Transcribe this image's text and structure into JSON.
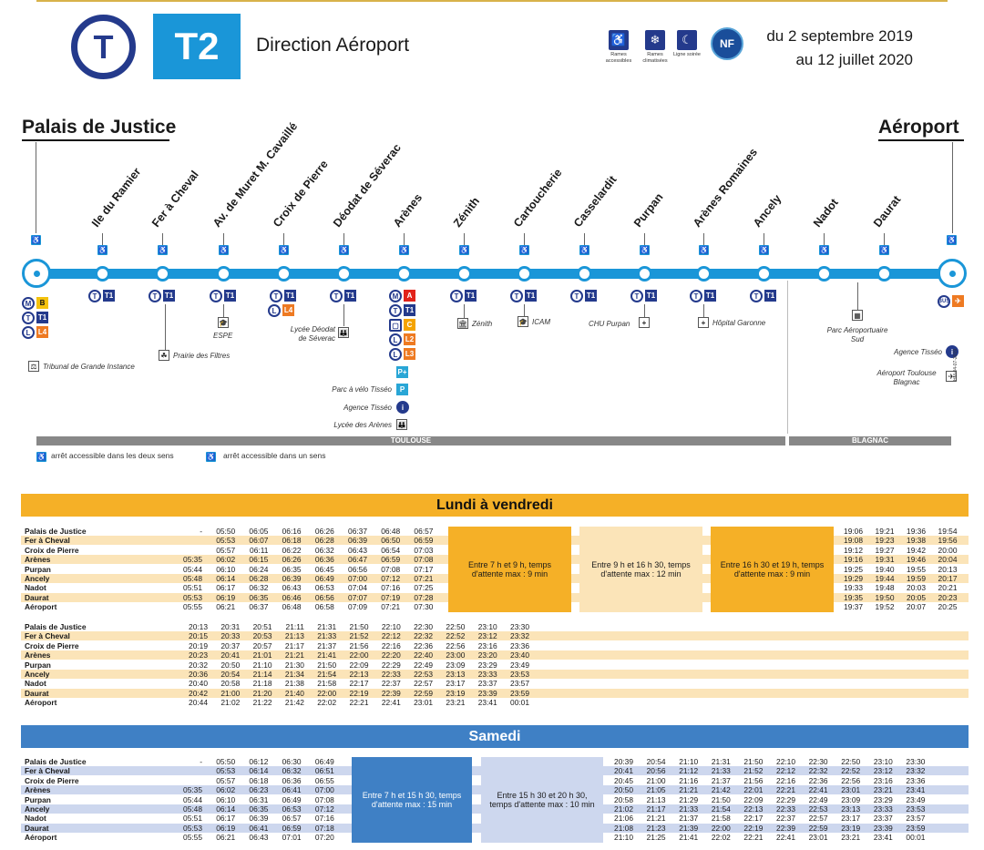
{
  "header": {
    "logo": "T",
    "line": "T2",
    "direction": "Direction Aéroport",
    "date_from": "du 2 septembre 2019",
    "date_to": "au 12 juillet 2020",
    "services": [
      {
        "icon": "wheelchair-icon",
        "label": "Rames accessibles"
      },
      {
        "icon": "snowflake-icon",
        "label": "Rames climatisées"
      },
      {
        "icon": "moon-icon",
        "label": "Ligne soirée"
      }
    ],
    "nf": "NF"
  },
  "map": {
    "origin": "Palais de Justice",
    "terminus": "Aéroport",
    "stops": [
      "Ile du Ramier",
      "Fer à Cheval",
      "Av. de Muret M. Cavaillé",
      "Croix de Pierre",
      "Déodat de Séverac",
      "Arènes",
      "Zénith",
      "Cartoucherie",
      "Casselardit",
      "Purpan",
      "Arènes Romaines",
      "Ancely",
      "Nadot",
      "Daurat"
    ],
    "conn": {
      "T": "T",
      "T1": "T1",
      "M": "M",
      "B": "B",
      "L": "L",
      "L4": "L4",
      "A": "A",
      "C": "C",
      "L2": "L2",
      "L3": "L3",
      "bus": "BUS"
    },
    "pois": {
      "tribunal": "Tribunal de Grande Instance",
      "filtres": "Prairie des Filtres",
      "espe": "ESPE",
      "lycee_deodat": "Lycée Déodat de Séverac",
      "velo": "Parc à vélo Tisséo",
      "agence1": "Agence Tisséo",
      "lycee_arenes": "Lycée des Arènes",
      "zenith": "Zénith",
      "icam": "ICAM",
      "chu": "CHU Purpan",
      "garonne": "Hôpital Garonne",
      "parc_aero": "Parc Aéroportuaire Sud",
      "agence2": "Agence Tisséo",
      "aeroport": "Aéroport Toulouse Blagnac"
    },
    "zones": [
      "TOULOUSE",
      "BLAGNAC"
    ],
    "legend1": "arrêt accessible dans les deux sens",
    "legend2": "arrêt accessible dans un sens",
    "ref": "HM-04-07-2019"
  },
  "timetable": {
    "stations": [
      "Palais de Justice",
      "Fer à Cheval",
      "Croix de Pierre",
      "Arènes",
      "Purpan",
      "Ancely",
      "Nadot",
      "Daurat",
      "Aéroport"
    ],
    "weekday": {
      "title": "Lundi à vendredi",
      "block1": [
        [
          "-",
          "",
          "",
          "05:35",
          "05:44",
          "05:48",
          "05:51",
          "05:53",
          "05:55"
        ],
        [
          "05:50",
          "05:53",
          "05:57",
          "06:02",
          "06:10",
          "06:14",
          "06:17",
          "06:19",
          "06:21"
        ],
        [
          "06:05",
          "06:07",
          "06:11",
          "06:15",
          "06:24",
          "06:28",
          "06:32",
          "06:35",
          "06:37"
        ],
        [
          "06:16",
          "06:18",
          "06:22",
          "06:26",
          "06:35",
          "06:39",
          "06:43",
          "06:46",
          "06:48"
        ],
        [
          "06:26",
          "06:28",
          "06:32",
          "06:36",
          "06:45",
          "06:49",
          "06:53",
          "06:56",
          "06:58"
        ],
        [
          "06:37",
          "06:39",
          "06:43",
          "06:47",
          "06:56",
          "07:00",
          "07:04",
          "07:07",
          "07:09"
        ],
        [
          "06:48",
          "06:50",
          "06:54",
          "06:59",
          "07:08",
          "07:12",
          "07:16",
          "07:19",
          "07:21"
        ],
        [
          "06:57",
          "06:59",
          "07:03",
          "07:08",
          "07:17",
          "07:21",
          "07:25",
          "07:28",
          "07:30"
        ]
      ],
      "boxes": [
        "Entre 7 h et 9 h, temps d'attente max : 9 min",
        "Entre 9 h et 16 h 30, temps d'attente max : 12 min",
        "Entre 16 h 30 et 19 h, temps d'attente max : 9 min"
      ],
      "block2": [
        [
          "19:06",
          "19:08",
          "19:12",
          "19:16",
          "19:25",
          "19:29",
          "19:33",
          "19:35",
          "19:37"
        ],
        [
          "19:21",
          "19:23",
          "19:27",
          "19:31",
          "19:40",
          "19:44",
          "19:48",
          "19:50",
          "19:52"
        ],
        [
          "19:36",
          "19:38",
          "19:42",
          "19:46",
          "19:55",
          "19:59",
          "20:03",
          "20:05",
          "20:07"
        ],
        [
          "19:54",
          "19:56",
          "20:00",
          "20:04",
          "20:13",
          "20:17",
          "20:21",
          "20:23",
          "20:25"
        ]
      ],
      "block3": [
        [
          "20:13",
          "20:15",
          "20:19",
          "20:23",
          "20:32",
          "20:36",
          "20:40",
          "20:42",
          "20:44"
        ],
        [
          "20:31",
          "20:33",
          "20:37",
          "20:41",
          "20:50",
          "20:54",
          "20:58",
          "21:00",
          "21:02"
        ],
        [
          "20:51",
          "20:53",
          "20:57",
          "21:01",
          "21:10",
          "21:14",
          "21:18",
          "21:20",
          "21:22"
        ],
        [
          "21:11",
          "21:13",
          "21:17",
          "21:21",
          "21:30",
          "21:34",
          "21:38",
          "21:40",
          "21:42"
        ],
        [
          "21:31",
          "21:33",
          "21:37",
          "21:41",
          "21:50",
          "21:54",
          "21:58",
          "22:00",
          "22:02"
        ],
        [
          "21:50",
          "21:52",
          "21:56",
          "22:00",
          "22:09",
          "22:13",
          "22:17",
          "22:19",
          "22:21"
        ],
        [
          "22:10",
          "22:12",
          "22:16",
          "22:20",
          "22:29",
          "22:33",
          "22:37",
          "22:39",
          "22:41"
        ],
        [
          "22:30",
          "22:32",
          "22:36",
          "22:40",
          "22:49",
          "22:53",
          "22:57",
          "22:59",
          "23:01"
        ],
        [
          "22:50",
          "22:52",
          "22:56",
          "23:00",
          "23:09",
          "23:13",
          "23:17",
          "23:19",
          "23:21"
        ],
        [
          "23:10",
          "23:12",
          "23:16",
          "23:20",
          "23:29",
          "23:33",
          "23:37",
          "23:39",
          "23:41"
        ],
        [
          "23:30",
          "23:32",
          "23:36",
          "23:40",
          "23:49",
          "23:53",
          "23:57",
          "23:59",
          "00:01"
        ]
      ]
    },
    "saturday": {
      "title": "Samedi",
      "block1": [
        [
          "-",
          "",
          "",
          "05:35",
          "05:44",
          "05:48",
          "05:51",
          "05:53",
          "05:55"
        ],
        [
          "05:50",
          "05:53",
          "05:57",
          "06:02",
          "06:10",
          "06:14",
          "06:17",
          "06:19",
          "06:21"
        ],
        [
          "06:12",
          "06:14",
          "06:18",
          "06:23",
          "06:31",
          "06:35",
          "06:39",
          "06:41",
          "06:43"
        ],
        [
          "06:30",
          "06:32",
          "06:36",
          "06:41",
          "06:49",
          "06:53",
          "06:57",
          "06:59",
          "07:01"
        ],
        [
          "06:49",
          "06:51",
          "06:55",
          "07:00",
          "07:08",
          "07:12",
          "07:16",
          "07:18",
          "07:20"
        ]
      ],
      "boxes": [
        "Entre 7 h et 15 h 30, temps d'attente max : 15 min",
        "Entre 15 h 30 et 20 h 30, temps d'attente max : 10 min"
      ],
      "block2": [
        [
          "20:39",
          "20:41",
          "20:45",
          "20:50",
          "20:58",
          "21:02",
          "21:06",
          "21:08",
          "21:10"
        ],
        [
          "20:54",
          "20:56",
          "21:00",
          "21:05",
          "21:13",
          "21:17",
          "21:21",
          "21:23",
          "21:25"
        ],
        [
          "21:10",
          "21:12",
          "21:16",
          "21:21",
          "21:29",
          "21:33",
          "21:37",
          "21:39",
          "21:41"
        ],
        [
          "21:31",
          "21:33",
          "21:37",
          "21:42",
          "21:50",
          "21:54",
          "21:58",
          "22:00",
          "22:02"
        ],
        [
          "21:50",
          "21:52",
          "21:56",
          "22:01",
          "22:09",
          "22:13",
          "22:17",
          "22:19",
          "22:21"
        ],
        [
          "22:10",
          "22:12",
          "22:16",
          "22:21",
          "22:29",
          "22:33",
          "22:37",
          "22:39",
          "22:41"
        ],
        [
          "22:30",
          "22:32",
          "22:36",
          "22:41",
          "22:49",
          "22:53",
          "22:57",
          "22:59",
          "23:01"
        ],
        [
          "22:50",
          "22:52",
          "22:56",
          "23:01",
          "23:09",
          "23:13",
          "23:17",
          "23:19",
          "23:21"
        ],
        [
          "23:10",
          "23:12",
          "23:16",
          "23:21",
          "23:29",
          "23:33",
          "23:37",
          "23:39",
          "23:41"
        ],
        [
          "23:30",
          "23:32",
          "23:36",
          "23:41",
          "23:49",
          "23:53",
          "23:57",
          "23:59",
          "00:01"
        ]
      ]
    }
  },
  "colors": {
    "line": "#1a96d8",
    "tisseo": "#243a8c",
    "weekday": "#f5b027",
    "weekday_light": "#fbe4b8",
    "saturday": "#3f80c5",
    "saturday_light": "#cdd7ee"
  }
}
